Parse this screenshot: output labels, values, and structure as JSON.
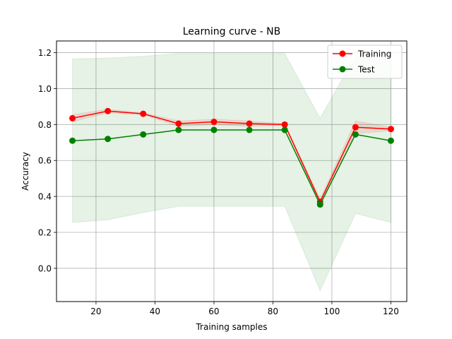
{
  "chart_data": {
    "type": "line",
    "title": "Learning curve - NB",
    "xlabel": "Training samples",
    "ylabel": "Accuracy",
    "xlim": [
      6.6,
      125.4
    ],
    "ylim": [
      -0.185,
      1.265
    ],
    "xticks": [
      20,
      40,
      60,
      80,
      100,
      120
    ],
    "xtick_labels": [
      "20",
      "40",
      "60",
      "80",
      "100",
      "120"
    ],
    "yticks": [
      0.0,
      0.2,
      0.4,
      0.6,
      0.8,
      1.0,
      1.2
    ],
    "ytick_labels": [
      "0.0",
      "0.2",
      "0.4",
      "0.6",
      "0.8",
      "1.0",
      "1.2"
    ],
    "grid": true,
    "legend_position": "top-right",
    "x": [
      12,
      24,
      36,
      48,
      60,
      72,
      84,
      96,
      108,
      120
    ],
    "series": [
      {
        "name": "Training",
        "color": "#ff0000",
        "band_color": "#ff0000",
        "values": [
          0.835,
          0.875,
          0.86,
          0.805,
          0.815,
          0.805,
          0.8,
          0.37,
          0.785,
          0.775
        ],
        "lower": [
          0.815,
          0.865,
          0.855,
          0.79,
          0.8,
          0.79,
          0.795,
          0.355,
          0.75,
          0.765
        ],
        "upper": [
          0.855,
          0.885,
          0.865,
          0.82,
          0.83,
          0.82,
          0.805,
          0.385,
          0.82,
          0.785
        ]
      },
      {
        "name": "Test",
        "color": "#008000",
        "band_color": "#008000",
        "values": [
          0.71,
          0.72,
          0.745,
          0.77,
          0.77,
          0.77,
          0.77,
          0.355,
          0.745,
          0.71
        ],
        "lower": [
          0.255,
          0.27,
          0.31,
          0.345,
          0.345,
          0.345,
          0.345,
          -0.125,
          0.305,
          0.255
        ],
        "upper": [
          1.165,
          1.17,
          1.18,
          1.195,
          1.195,
          1.195,
          1.195,
          0.835,
          1.185,
          1.165
        ]
      }
    ]
  }
}
